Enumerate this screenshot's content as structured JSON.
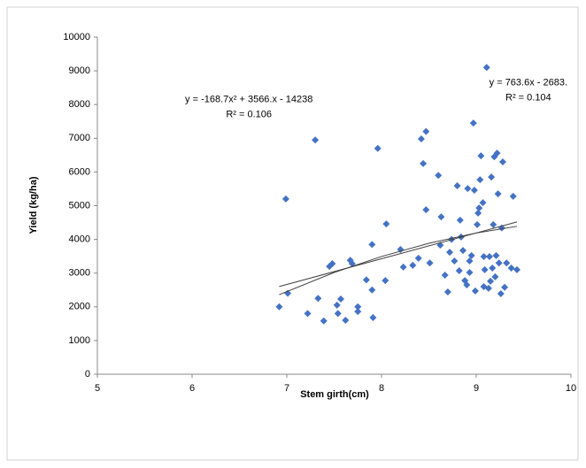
{
  "chart_data": {
    "type": "scatter",
    "x_label": "Stem girth(cm)",
    "y_label": "Yield (kg/ha)",
    "xlim": [
      5,
      10
    ],
    "xticks": [
      5,
      6,
      7,
      8,
      9,
      10
    ],
    "ylim": [
      0,
      10000
    ],
    "yticks": [
      0,
      1000,
      2000,
      3000,
      4000,
      5000,
      6000,
      7000,
      8000,
      9000,
      10000
    ],
    "annotations": [
      {
        "text": "y = -168.7x² + 3566.x - 14238",
        "x": 6.6,
        "y": 8150
      },
      {
        "text": "R² = 0.106",
        "x": 6.6,
        "y": 7700
      },
      {
        "text": "y = 763.6x - 2683.",
        "x": 9.55,
        "y": 8650
      },
      {
        "text": "R² = 0.104",
        "x": 9.55,
        "y": 8200
      }
    ],
    "series": [
      {
        "name": "Yield",
        "color": "#4472c4",
        "x": [
          6.92,
          6.99,
          7.01,
          7.3,
          7.22,
          7.33,
          7.39,
          7.45,
          7.48,
          7.53,
          7.54,
          7.57,
          7.62,
          7.67,
          7.69,
          7.75,
          7.75,
          7.84,
          7.9,
          7.9,
          7.91,
          7.96,
          8.04,
          8.05,
          8.2,
          8.23,
          8.33,
          8.39,
          8.42,
          8.44,
          8.47,
          8.47,
          8.51,
          8.6,
          8.62,
          8.63,
          8.67,
          8.7,
          8.72,
          8.74,
          8.77,
          8.8,
          8.82,
          8.83,
          8.84,
          8.86,
          8.88,
          8.9,
          8.91,
          8.93,
          8.93,
          8.95,
          8.97,
          8.98,
          8.99,
          9.01,
          9.02,
          9.03,
          9.04,
          9.05,
          9.07,
          9.08,
          9.08,
          9.09,
          9.11,
          9.13,
          9.14,
          9.15,
          9.16,
          9.17,
          9.18,
          9.19,
          9.2,
          9.21,
          9.22,
          9.23,
          9.24,
          9.26,
          9.27,
          9.28,
          9.3,
          9.32,
          9.37,
          9.39,
          9.43
        ],
        "values": [
          2000,
          5200,
          2400,
          6950,
          1800,
          2250,
          1580,
          3200,
          3280,
          2050,
          1800,
          2230,
          1600,
          3380,
          3280,
          2000,
          1860,
          2800,
          2500,
          3850,
          1680,
          6700,
          2780,
          4460,
          3700,
          3180,
          3230,
          3440,
          6980,
          6250,
          7200,
          4880,
          3300,
          5900,
          3830,
          4670,
          2940,
          2440,
          3620,
          4000,
          3360,
          5590,
          3070,
          4570,
          4070,
          3670,
          2780,
          2650,
          5510,
          3020,
          3360,
          3520,
          7450,
          5460,
          2470,
          4440,
          4780,
          4930,
          5770,
          6480,
          5090,
          2600,
          3490,
          3100,
          9100,
          2550,
          3490,
          2760,
          5850,
          3150,
          4440,
          6450,
          2890,
          3520,
          6560,
          5350,
          3300,
          2390,
          4340,
          6300,
          2580,
          3300,
          3150,
          5280,
          3100
        ]
      },
      {
        "color": "#404040",
        "line": true,
        "x": [
          6.92,
          9.43
        ],
        "values": [
          2601,
          4518
        ]
      },
      {
        "color": "#404040",
        "line": true,
        "x": [
          6.92,
          7.5,
          8,
          8.5,
          9,
          9.43
        ],
        "values": [
          2360,
          3018,
          3493,
          3884,
          4191,
          4388
        ]
      }
    ]
  }
}
